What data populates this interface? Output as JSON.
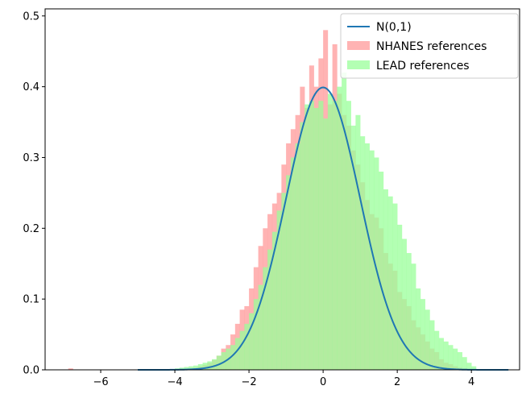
{
  "chart_data": {
    "type": "histogram",
    "title": "",
    "xlabel": "",
    "ylabel": "",
    "xlim": [
      -7.5,
      5.3
    ],
    "ylim": [
      0,
      0.51
    ],
    "x_ticks": [
      -6,
      -4,
      -2,
      0,
      2,
      4
    ],
    "y_ticks": [
      0.0,
      0.1,
      0.2,
      0.3,
      0.4,
      0.5
    ],
    "grid": false,
    "legend_position": "top-right",
    "series": [
      {
        "name": "N(0,1)",
        "kind": "line",
        "color": "#1f77b4",
        "function": "standard normal pdf",
        "x_range": [
          -5,
          5
        ]
      },
      {
        "name": "NHANES references",
        "kind": "histogram",
        "color": "#ff9999",
        "opacity": 0.75,
        "bin_width": 0.125,
        "bin_start": -6.875,
        "values": [
          0.002,
          0,
          0,
          0,
          0,
          0,
          0,
          0,
          0,
          0,
          0,
          0,
          0,
          0,
          0,
          0,
          0,
          0,
          0,
          0,
          0,
          0,
          0,
          0,
          0,
          0,
          0.002,
          0.003,
          0.005,
          0.007,
          0.01,
          0.014,
          0.02,
          0.03,
          0.035,
          0.05,
          0.065,
          0.085,
          0.09,
          0.115,
          0.145,
          0.175,
          0.2,
          0.22,
          0.235,
          0.25,
          0.29,
          0.32,
          0.34,
          0.36,
          0.4,
          0.37,
          0.43,
          0.4,
          0.44,
          0.48,
          0.375,
          0.46,
          0.39,
          0.36,
          0.345,
          0.31,
          0.29,
          0.265,
          0.24,
          0.22,
          0.215,
          0.2,
          0.165,
          0.15,
          0.14,
          0.11,
          0.1,
          0.09,
          0.07,
          0.06,
          0.05,
          0.04,
          0.03,
          0.025,
          0.015,
          0.01,
          0.008,
          0.005,
          0.003,
          0.002,
          0.001,
          0.001
        ]
      },
      {
        "name": "LEAD references",
        "kind": "histogram",
        "color": "#99ff99",
        "opacity": 0.75,
        "bin_width": 0.125,
        "bin_start": -4.0,
        "values": [
          0.002,
          0.003,
          0.004,
          0.005,
          0.006,
          0.008,
          0.01,
          0.012,
          0.015,
          0.02,
          0.025,
          0.03,
          0.035,
          0.045,
          0.055,
          0.065,
          0.08,
          0.1,
          0.12,
          0.145,
          0.17,
          0.195,
          0.225,
          0.25,
          0.275,
          0.3,
          0.32,
          0.35,
          0.375,
          0.38,
          0.37,
          0.38,
          0.355,
          0.39,
          0.38,
          0.4,
          0.42,
          0.38,
          0.345,
          0.36,
          0.33,
          0.32,
          0.31,
          0.3,
          0.28,
          0.255,
          0.245,
          0.235,
          0.205,
          0.185,
          0.165,
          0.15,
          0.115,
          0.1,
          0.085,
          0.07,
          0.055,
          0.045,
          0.04,
          0.035,
          0.03,
          0.025,
          0.018,
          0.01,
          0.005
        ]
      }
    ]
  }
}
